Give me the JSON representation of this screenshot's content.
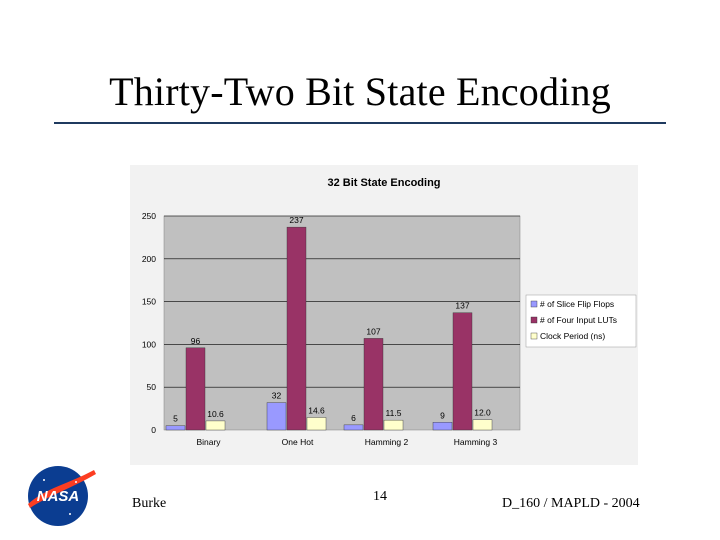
{
  "slide": {
    "title": "Thirty-Two Bit State Encoding",
    "footer_left": "Burke",
    "page_number": "14",
    "footer_right": "D_160 / MAPLD - 2004",
    "logo_text": "NASA"
  },
  "colors": {
    "series1": "#9999ff",
    "series2": "#993366",
    "series3": "#ffffcc",
    "plot_bg": "#c0c0c0",
    "chart_bg": "#f2f2f2",
    "title_rule": "#1f3a5f"
  },
  "chart_data": {
    "type": "bar",
    "title": "32 Bit State Encoding",
    "categories": [
      "Binary",
      "One Hot",
      "Hamming 2",
      "Hamming 3"
    ],
    "series": [
      {
        "name": "# of Slice Flip Flops",
        "values": [
          5,
          32,
          6,
          9
        ],
        "labels": [
          "5",
          "32",
          "6",
          "9"
        ]
      },
      {
        "name": "# of Four Input LUTs",
        "values": [
          96,
          237,
          107,
          137
        ],
        "labels": [
          "96",
          "237",
          "107",
          "137"
        ]
      },
      {
        "name": "Clock Period (ns)",
        "values": [
          10.6,
          14.6,
          11.5,
          12.0
        ],
        "labels": [
          "10.6",
          "14.6",
          "11.5",
          "12.0"
        ]
      }
    ],
    "ylim": [
      0,
      250
    ],
    "yticks": [
      "0",
      "50",
      "100",
      "150",
      "200",
      "250"
    ],
    "xlabel": "",
    "ylabel": "",
    "grid": true,
    "legend": "right"
  }
}
